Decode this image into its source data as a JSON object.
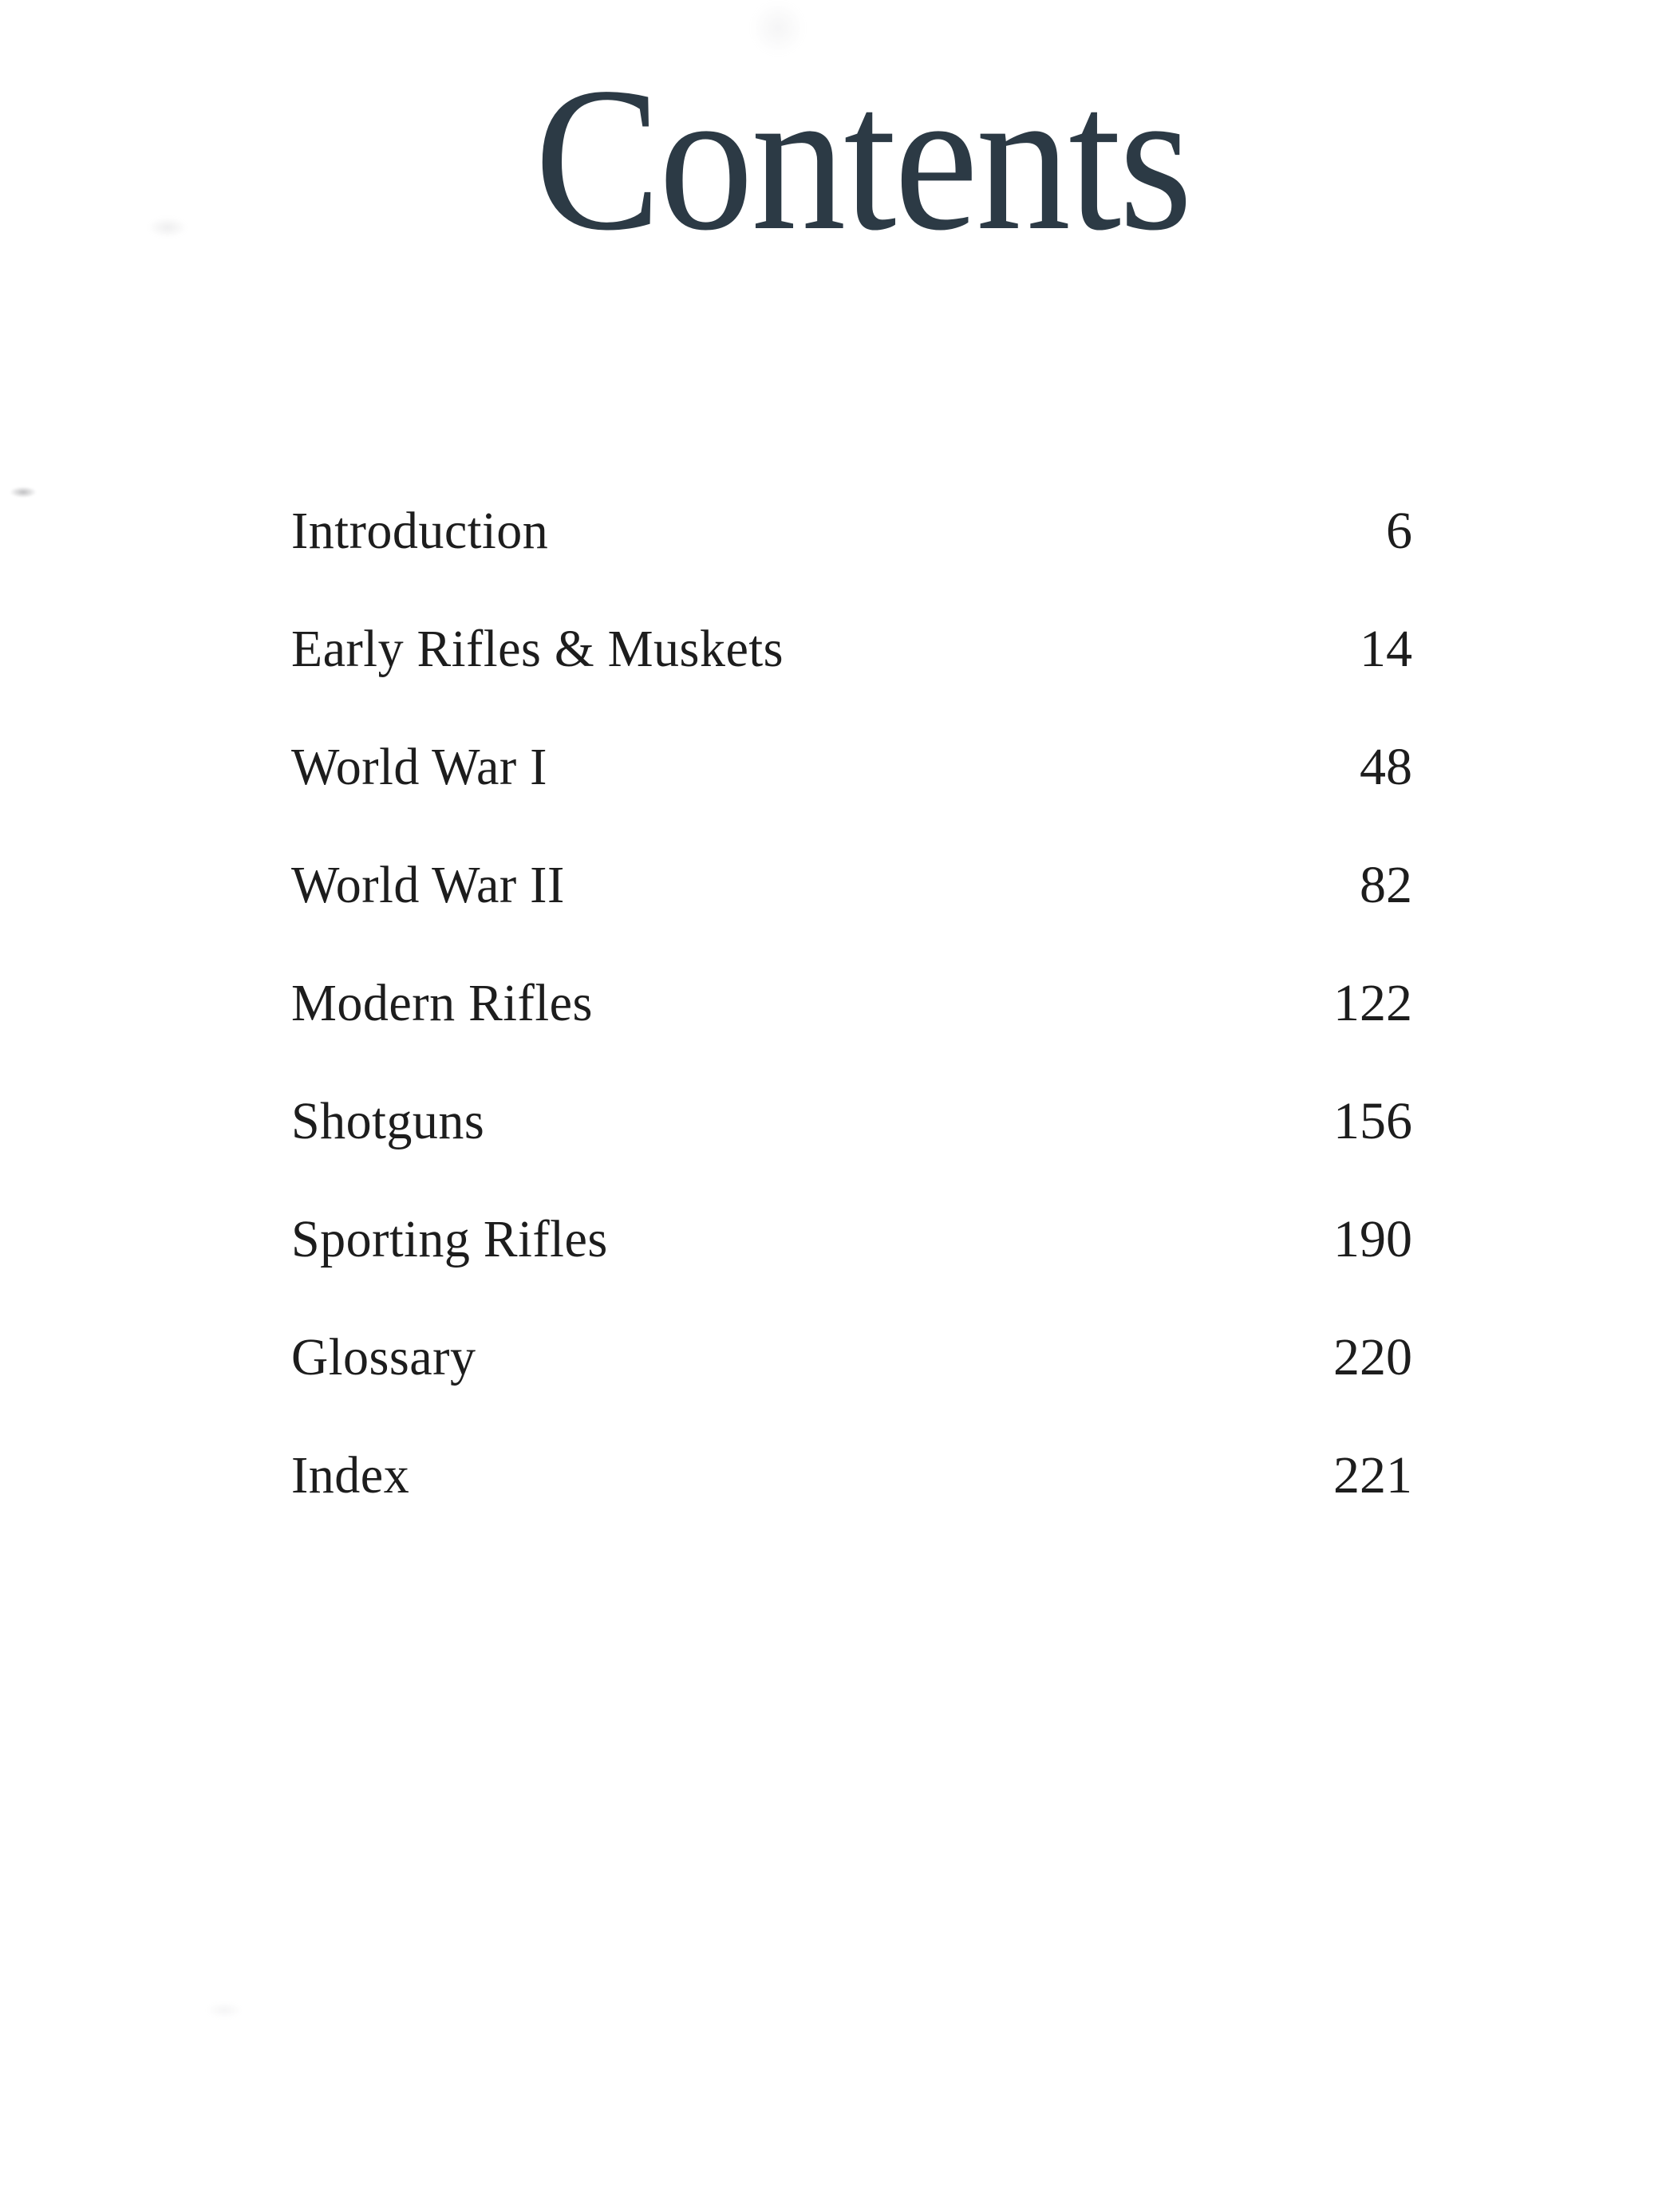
{
  "page": {
    "title": "Contents",
    "toc": [
      {
        "label": "Introduction",
        "page": "6"
      },
      {
        "label": "Early Rifles & Muskets",
        "page": "14"
      },
      {
        "label": "World War I",
        "page": "48"
      },
      {
        "label": "World War II",
        "page": "82"
      },
      {
        "label": "Modern Rifles",
        "page": "122"
      },
      {
        "label": "Shotguns",
        "page": "156"
      },
      {
        "label": "Sporting Rifles",
        "page": "190"
      },
      {
        "label": "Glossary",
        "page": "220"
      },
      {
        "label": "Index",
        "page": "221"
      }
    ],
    "colors": {
      "title": "#2c3a45",
      "text": "#1d1d1d",
      "background": "#ffffff"
    }
  }
}
